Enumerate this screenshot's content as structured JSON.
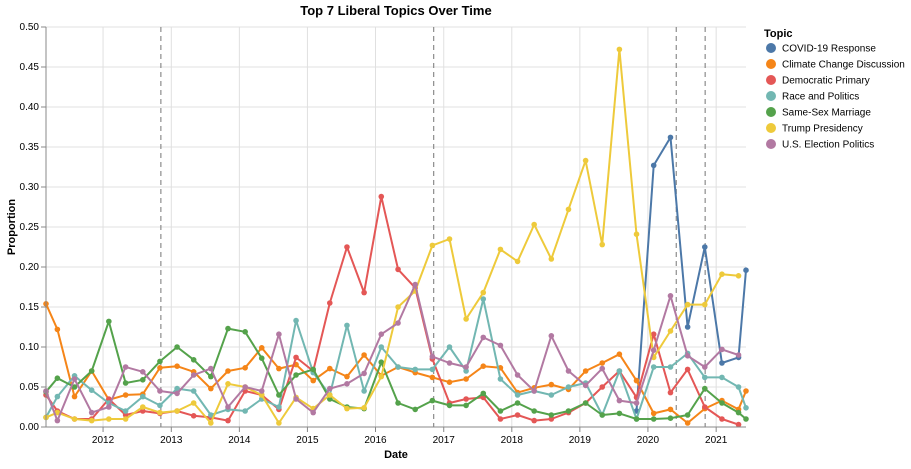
{
  "chart_data": {
    "type": "line",
    "title": "Top 7 Liberal Topics Over Time",
    "xlabel": "Date",
    "ylabel": "Proportion",
    "xlim": [
      "2011-03-01",
      "2021-06-10"
    ],
    "ylim": [
      0,
      0.5
    ],
    "y_ticks": [
      "0.00",
      "0.05",
      "0.10",
      "0.15",
      "0.20",
      "0.25",
      "0.30",
      "0.35",
      "0.40",
      "0.45",
      "0.50"
    ],
    "x_ticks": [
      {
        "label": "2012",
        "date": "2012-01-01"
      },
      {
        "label": "2013",
        "date": "2013-01-01"
      },
      {
        "label": "2014",
        "date": "2014-01-01"
      },
      {
        "label": "2015",
        "date": "2015-01-01"
      },
      {
        "label": "2016",
        "date": "2016-01-01"
      },
      {
        "label": "2017",
        "date": "2017-01-01"
      },
      {
        "label": "2018",
        "date": "2018-01-01"
      },
      {
        "label": "2019",
        "date": "2019-01-01"
      },
      {
        "label": "2020",
        "date": "2020-01-01"
      },
      {
        "label": "2021",
        "date": "2021-01-01"
      }
    ],
    "grid": true,
    "legend_title": "Topic",
    "legend_position": "right",
    "vertical_rules": [
      "2012-11-06",
      "2016-11-08",
      "2020-06-01",
      "2020-11-03"
    ],
    "x": [
      "2011-03-01",
      "2011-05-01",
      "2011-08-01",
      "2011-11-01",
      "2012-02-01",
      "2012-05-01",
      "2012-08-01",
      "2012-11-01",
      "2013-02-01",
      "2013-05-01",
      "2013-08-01",
      "2013-11-01",
      "2014-02-01",
      "2014-05-01",
      "2014-08-01",
      "2014-11-01",
      "2015-02-01",
      "2015-05-01",
      "2015-08-01",
      "2015-11-01",
      "2016-02-01",
      "2016-05-01",
      "2016-08-01",
      "2016-11-01",
      "2017-02-01",
      "2017-05-01",
      "2017-08-01",
      "2017-11-01",
      "2018-02-01",
      "2018-05-01",
      "2018-08-01",
      "2018-11-01",
      "2019-02-01",
      "2019-05-01",
      "2019-08-01",
      "2019-11-01",
      "2020-02-01",
      "2020-05-01",
      "2020-08-01",
      "2020-11-01",
      "2021-02-01",
      "2021-05-01",
      "2021-06-10"
    ],
    "series": [
      {
        "name": "COVID-19 Response",
        "color": "#4c78a8",
        "values": [
          null,
          null,
          null,
          null,
          null,
          null,
          null,
          null,
          null,
          null,
          null,
          null,
          null,
          null,
          null,
          null,
          null,
          null,
          null,
          null,
          null,
          null,
          null,
          null,
          null,
          null,
          null,
          null,
          null,
          null,
          null,
          null,
          null,
          null,
          null,
          0.02,
          0.327,
          0.362,
          0.125,
          0.225,
          0.08,
          0.087,
          0.196
        ]
      },
      {
        "name": "Climate Change Discussion",
        "color": "#f58518",
        "values": [
          0.154,
          0.122,
          0.038,
          0.07,
          0.034,
          0.04,
          0.041,
          0.074,
          0.076,
          0.069,
          0.048,
          0.07,
          0.074,
          0.099,
          0.073,
          0.078,
          0.058,
          0.073,
          0.063,
          0.09,
          0.064,
          0.075,
          0.068,
          0.062,
          0.056,
          0.06,
          0.076,
          0.074,
          0.043,
          0.049,
          0.053,
          0.047,
          0.07,
          0.08,
          0.091,
          0.058,
          0.017,
          0.022,
          0.005,
          0.023,
          0.033,
          0.022,
          0.045
        ]
      },
      {
        "name": "Democratic Primary",
        "color": "#e45756",
        "values": [
          0.04,
          0.02,
          0.01,
          0.01,
          0.035,
          0.015,
          0.02,
          0.017,
          0.02,
          0.014,
          0.012,
          0.008,
          0.045,
          0.04,
          0.022,
          0.087,
          0.07,
          0.155,
          0.225,
          0.168,
          0.288,
          0.197,
          0.174,
          0.085,
          0.03,
          0.035,
          0.037,
          0.01,
          0.015,
          0.008,
          0.01,
          0.018,
          0.03,
          0.05,
          0.07,
          0.037,
          0.116,
          0.043,
          0.072,
          0.025,
          0.01,
          0.003,
          null
        ]
      },
      {
        "name": "Race and Politics",
        "color": "#72b7b2",
        "values": [
          0.012,
          0.038,
          0.064,
          0.046,
          0.03,
          0.02,
          0.038,
          0.027,
          0.048,
          0.045,
          0.015,
          0.022,
          0.02,
          0.035,
          0.025,
          0.133,
          0.068,
          0.04,
          0.127,
          0.045,
          0.1,
          0.075,
          0.072,
          0.072,
          0.1,
          0.07,
          0.16,
          0.06,
          0.04,
          0.045,
          0.04,
          0.05,
          0.055,
          0.015,
          0.07,
          0.01,
          0.075,
          0.075,
          0.092,
          0.062,
          0.062,
          0.05,
          0.024
        ]
      },
      {
        "name": "Same-Sex Marriage",
        "color": "#54a24b",
        "values": [
          0.044,
          0.061,
          0.05,
          0.07,
          0.132,
          0.055,
          0.059,
          0.082,
          0.1,
          0.084,
          0.063,
          0.123,
          0.119,
          0.086,
          0.04,
          0.065,
          0.072,
          0.035,
          0.025,
          0.023,
          0.081,
          0.03,
          0.022,
          0.033,
          0.027,
          0.027,
          0.042,
          0.02,
          0.03,
          0.02,
          0.015,
          0.02,
          0.03,
          0.015,
          0.017,
          0.01,
          0.01,
          0.011,
          0.015,
          0.048,
          0.03,
          0.018,
          0.01
        ]
      },
      {
        "name": "Trump Presidency",
        "color": "#eeca3b",
        "values": [
          0.012,
          0.018,
          0.01,
          0.008,
          0.01,
          0.01,
          0.025,
          0.018,
          0.02,
          0.03,
          0.005,
          0.054,
          0.05,
          0.04,
          0.005,
          0.037,
          0.023,
          0.04,
          0.023,
          0.024,
          0.063,
          0.15,
          0.17,
          0.227,
          0.235,
          0.135,
          0.168,
          0.222,
          0.207,
          0.253,
          0.21,
          0.272,
          0.333,
          0.228,
          0.472,
          0.241,
          0.087,
          0.12,
          0.153,
          0.153,
          0.191,
          0.189,
          null
        ]
      },
      {
        "name": "U.S. Election Politics",
        "color": "#b279a2",
        "values": [
          0.045,
          0.008,
          0.06,
          0.018,
          0.025,
          0.075,
          0.069,
          0.045,
          0.042,
          0.065,
          0.073,
          0.025,
          0.05,
          0.045,
          0.116,
          0.035,
          0.018,
          0.048,
          0.054,
          0.067,
          0.116,
          0.13,
          0.178,
          0.088,
          0.08,
          0.075,
          0.112,
          0.102,
          0.065,
          0.045,
          0.114,
          0.07,
          0.052,
          0.073,
          0.033,
          0.03,
          0.096,
          0.164,
          0.089,
          0.075,
          0.097,
          0.09,
          null
        ]
      }
    ]
  }
}
